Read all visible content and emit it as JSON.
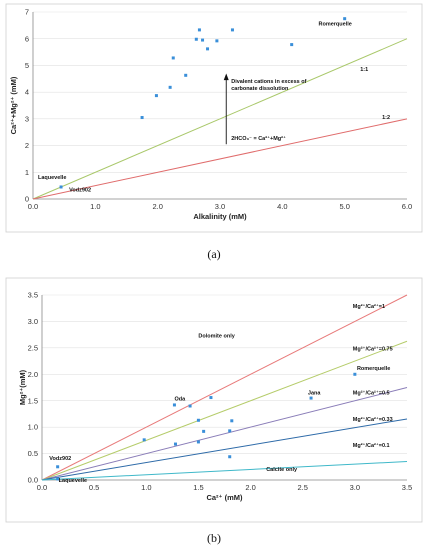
{
  "captions": {
    "a": "(a)",
    "b": "(b)"
  },
  "chart_data": [
    {
      "type": "scatter",
      "xlabel": "Alkalinity (mM)",
      "ylabel": "Ca²⁺+Mg²⁺ (mM)",
      "xlim": [
        0,
        6
      ],
      "ylim": [
        0,
        7
      ],
      "xticks": [
        "0.0",
        "1.0",
        "2.0",
        "3.0",
        "4.0",
        "5.0",
        "6.0"
      ],
      "yticks": [
        "0",
        "1",
        "2",
        "3",
        "4",
        "5",
        "6",
        "7"
      ],
      "grid": "horizontal",
      "series": [
        {
          "color": "#3a8fd9",
          "points": [
            [
              0.45,
              0.45
            ],
            [
              1.75,
              3.05
            ],
            [
              1.98,
              3.87
            ],
            [
              2.2,
              4.18
            ],
            [
              2.25,
              5.28
            ],
            [
              2.45,
              4.63
            ],
            [
              2.62,
              5.98
            ],
            [
              2.67,
              6.33
            ],
            [
              2.72,
              5.95
            ],
            [
              2.8,
              5.62
            ],
            [
              2.95,
              5.92
            ],
            [
              3.2,
              6.33
            ],
            [
              4.15,
              5.78
            ],
            [
              5.0,
              6.75
            ]
          ]
        }
      ],
      "lines": [
        {
          "label": "1:1",
          "color": "#a9c86a",
          "slope": 1
        },
        {
          "label": "1:2",
          "color": "#e06c6c",
          "slope": 0.5
        }
      ],
      "annotations": {
        "laquevelle": "Laquevelle",
        "vodz": "Vodz902",
        "romerquelle": "Romerquelle",
        "divalent": [
          "Divalent cations in excess of",
          "carbonate dissolution"
        ],
        "equation": "2HCO₃⁻ = Ca²⁺+Mg²⁺"
      }
    },
    {
      "type": "scatter",
      "xlabel": "Ca²⁺ (mM)",
      "ylabel": "Mg²⁺(mM)",
      "xlim": [
        0,
        3.5
      ],
      "ylim": [
        0,
        3.5
      ],
      "xticks": [
        "0.0",
        "0.5",
        "1.0",
        "1.5",
        "2.0",
        "2.5",
        "3.0",
        "3.5"
      ],
      "yticks": [
        "0.0",
        "0.5",
        "1.0",
        "1.5",
        "2.0",
        "2.5",
        "3.0",
        "3.5"
      ],
      "grid": "horizontal",
      "series": [
        {
          "color": "#3a8fd9",
          "points": [
            [
              0.15,
              0.25
            ],
            [
              0.15,
              0.02
            ],
            [
              0.98,
              0.76
            ],
            [
              1.27,
              1.42
            ],
            [
              1.28,
              0.68
            ],
            [
              1.42,
              1.4
            ],
            [
              1.5,
              1.13
            ],
            [
              1.5,
              0.72
            ],
            [
              1.55,
              0.92
            ],
            [
              1.62,
              1.56
            ],
            [
              1.8,
              0.44
            ],
            [
              1.82,
              1.12
            ],
            [
              1.8,
              0.93
            ],
            [
              2.58,
              1.55
            ],
            [
              3.0,
              2.0
            ]
          ]
        }
      ],
      "lines": [
        {
          "label": "Mg²⁺/Ca²⁺=1",
          "color": "#e87a7a",
          "slope": 1
        },
        {
          "label": "Mg²⁺/Ca²⁺=0.75",
          "color": "#b5cc6a",
          "slope": 0.75
        },
        {
          "label": "Mg²⁺/Ca²⁺=0.5",
          "color": "#8a7db8",
          "slope": 0.5
        },
        {
          "label": "Mg²⁺/Ca²⁺=0.33",
          "color": "#2d6aa8",
          "slope": 0.33
        },
        {
          "label": "Mg²⁺/Ca²⁺=0.1",
          "color": "#3fb8c9",
          "slope": 0.1
        }
      ],
      "annotations": {
        "dolomite": "Dolomite only",
        "calcite": "Calcite only",
        "oda": "Oda",
        "jana": "Jana",
        "romerquelle": "Romerquelle",
        "vodz": "Vodz902",
        "laquevelle": "Laquevelle"
      }
    }
  ]
}
